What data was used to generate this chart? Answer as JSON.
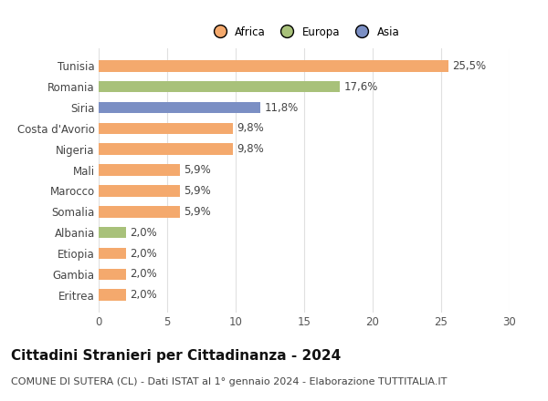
{
  "categories": [
    "Eritrea",
    "Gambia",
    "Etiopia",
    "Albania",
    "Somalia",
    "Marocco",
    "Mali",
    "Nigeria",
    "Costa d'Avorio",
    "Siria",
    "Romania",
    "Tunisia"
  ],
  "values": [
    2.0,
    2.0,
    2.0,
    2.0,
    5.9,
    5.9,
    5.9,
    9.8,
    9.8,
    11.8,
    17.6,
    25.5
  ],
  "labels": [
    "2,0%",
    "2,0%",
    "2,0%",
    "2,0%",
    "5,9%",
    "5,9%",
    "5,9%",
    "9,8%",
    "9,8%",
    "11,8%",
    "17,6%",
    "25,5%"
  ],
  "colors": [
    "#f4a96d",
    "#f4a96d",
    "#f4a96d",
    "#a8c17a",
    "#f4a96d",
    "#f4a96d",
    "#f4a96d",
    "#f4a96d",
    "#f4a96d",
    "#7b8fc4",
    "#a8c17a",
    "#f4a96d"
  ],
  "legend": [
    {
      "label": "Africa",
      "color": "#f4a96d"
    },
    {
      "label": "Europa",
      "color": "#a8c17a"
    },
    {
      "label": "Asia",
      "color": "#7b8fc4"
    }
  ],
  "xlim": [
    0,
    30
  ],
  "xticks": [
    0,
    5,
    10,
    15,
    20,
    25,
    30
  ],
  "title": "Cittadini Stranieri per Cittadinanza - 2024",
  "subtitle": "COMUNE DI SUTERA (CL) - Dati ISTAT al 1° gennaio 2024 - Elaborazione TUTTITALIA.IT",
  "background_color": "#ffffff",
  "grid_color": "#e0e0e0",
  "bar_height": 0.55,
  "label_fontsize": 8.5,
  "tick_fontsize": 8.5,
  "title_fontsize": 11,
  "subtitle_fontsize": 8
}
